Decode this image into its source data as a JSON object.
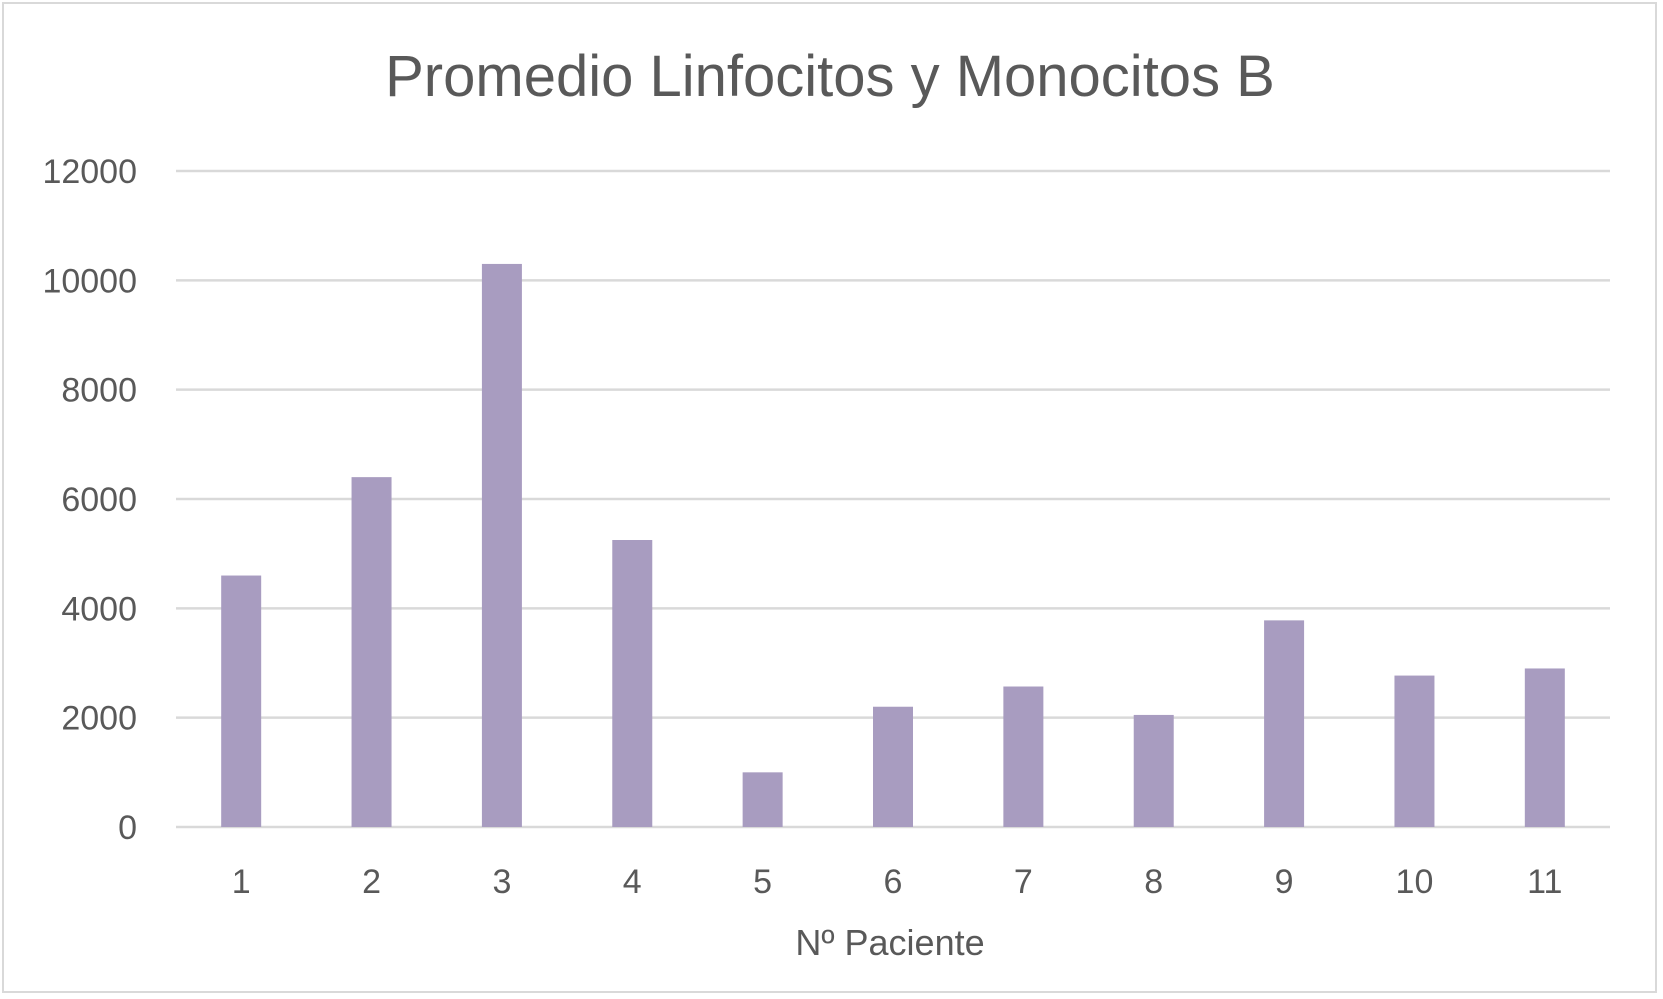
{
  "chart_data": {
    "type": "bar",
    "title": "Promedio Linfocitos y Monocitos B",
    "xlabel": "Nº Paciente",
    "ylabel": "",
    "categories": [
      "1",
      "2",
      "3",
      "4",
      "5",
      "6",
      "7",
      "8",
      "9",
      "10",
      "11"
    ],
    "values": [
      4600,
      6400,
      10300,
      5250,
      1000,
      2200,
      2570,
      2050,
      3780,
      2770,
      2900
    ],
    "ylim": [
      0,
      12000
    ],
    "yticks": [
      "0",
      "2000",
      "4000",
      "6000",
      "8000",
      "10000",
      "12000"
    ],
    "grid": true,
    "legend": "none",
    "bar_color": "#a89cc0"
  }
}
